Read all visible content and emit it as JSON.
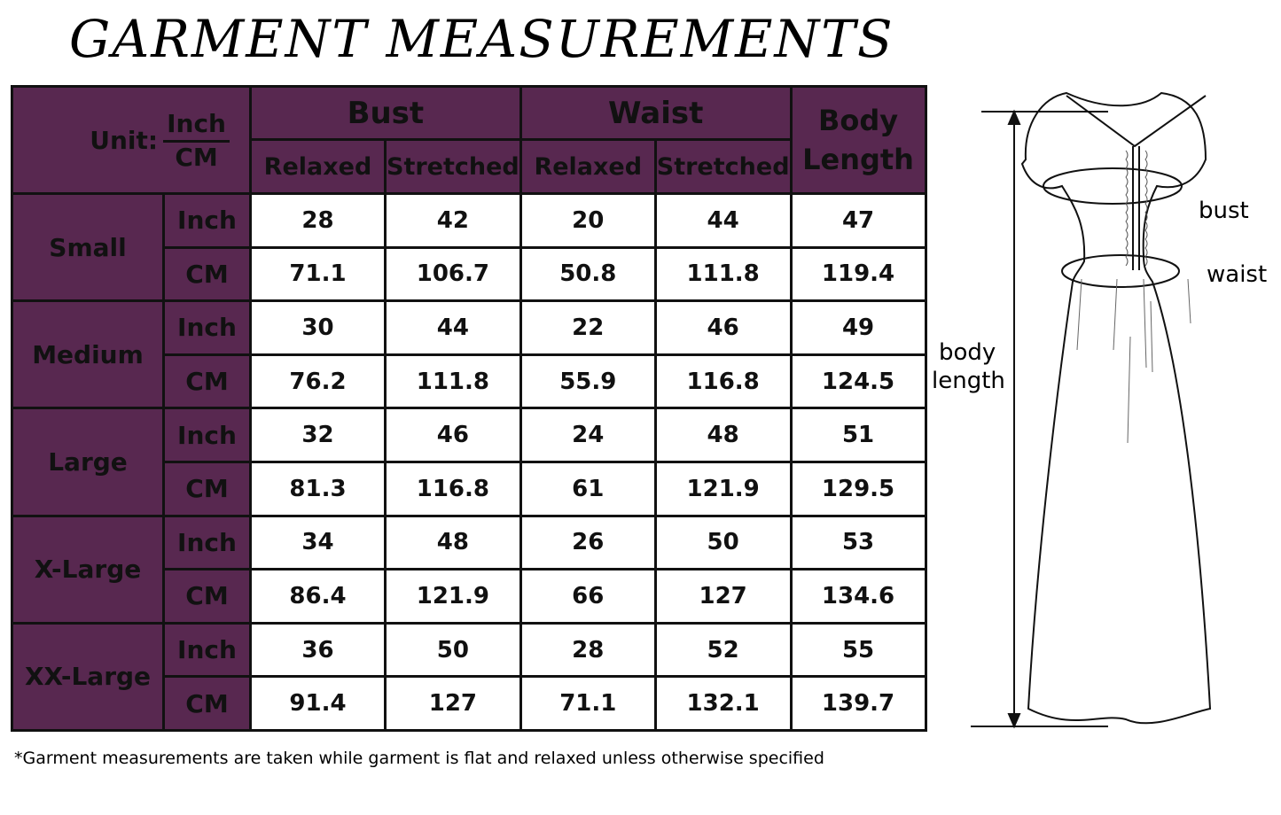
{
  "title": "GARMENT MEASUREMENTS",
  "header": {
    "unit_label": "Unit:",
    "unit_inch": "Inch",
    "unit_cm": "CM",
    "bust": "Bust",
    "waist": "Waist",
    "body_length": "Body Length",
    "relaxed": "Relaxed",
    "stretched": "Stretched"
  },
  "colors": {
    "header_bg": "#582850",
    "cell_bg": "#ffffff",
    "border": "#111111"
  },
  "sizes": [
    {
      "name": "Small",
      "rows": [
        {
          "unit": "Inch",
          "values": [
            "28",
            "42",
            "20",
            "44",
            "47"
          ]
        },
        {
          "unit": "CM",
          "values": [
            "71.1",
            "106.7",
            "50.8",
            "111.8",
            "119.4"
          ]
        }
      ]
    },
    {
      "name": "Medium",
      "rows": [
        {
          "unit": "Inch",
          "values": [
            "30",
            "44",
            "22",
            "46",
            "49"
          ]
        },
        {
          "unit": "CM",
          "values": [
            "76.2",
            "111.8",
            "55.9",
            "116.8",
            "124.5"
          ]
        }
      ]
    },
    {
      "name": "Large",
      "rows": [
        {
          "unit": "Inch",
          "values": [
            "32",
            "46",
            "24",
            "48",
            "51"
          ]
        },
        {
          "unit": "CM",
          "values": [
            "81.3",
            "116.8",
            "61",
            "121.9",
            "129.5"
          ]
        }
      ]
    },
    {
      "name": "X-Large",
      "rows": [
        {
          "unit": "Inch",
          "values": [
            "34",
            "48",
            "26",
            "50",
            "53"
          ]
        },
        {
          "unit": "CM",
          "values": [
            "86.4",
            "121.9",
            "66",
            "127",
            "134.6"
          ]
        }
      ]
    },
    {
      "name": "XX-Large",
      "rows": [
        {
          "unit": "Inch",
          "values": [
            "36",
            "50",
            "28",
            "52",
            "55"
          ]
        },
        {
          "unit": "CM",
          "values": [
            "91.4",
            "127",
            "71.1",
            "132.1",
            "139.7"
          ]
        }
      ]
    }
  ],
  "diagram": {
    "bust": "bust",
    "waist": "waist",
    "body_length_1": "body",
    "body_length_2": "length"
  },
  "footnote": "*Garment measurements are taken while garment is flat and relaxed unless otherwise specified"
}
